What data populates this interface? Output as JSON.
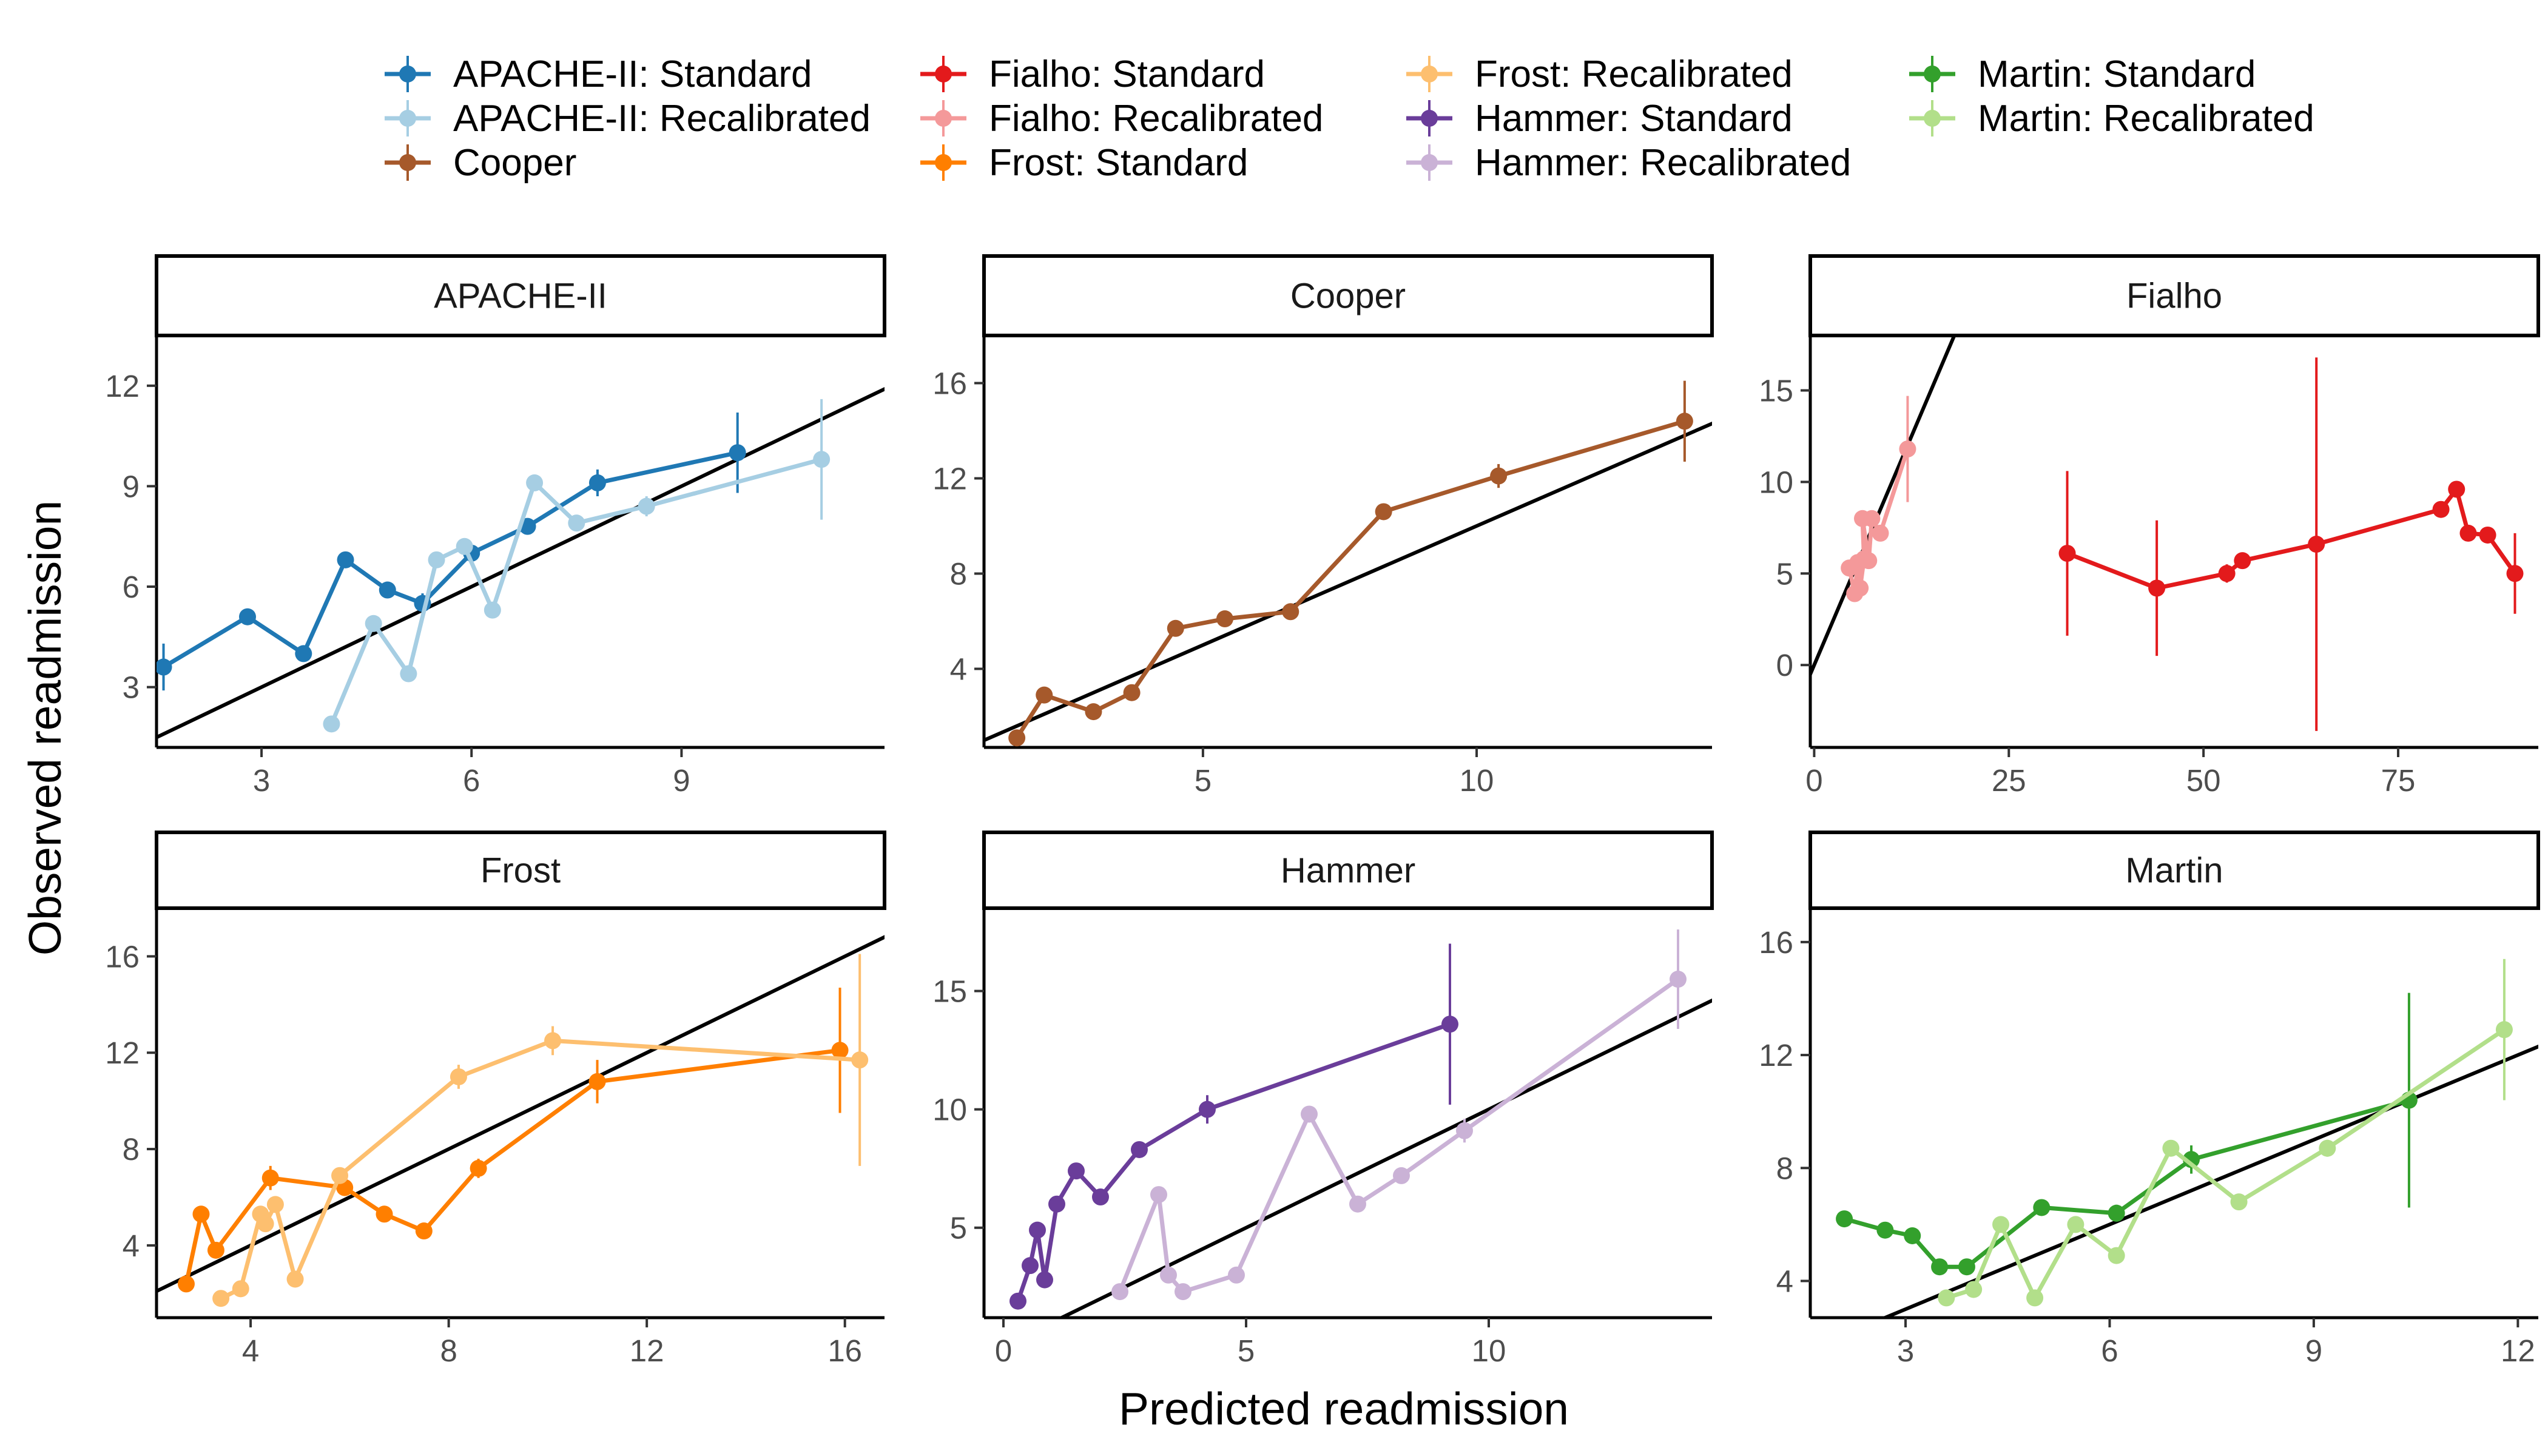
{
  "chart_data": {
    "type": "line",
    "xlabel": "Predicted readmission",
    "ylabel": "Observed readmission",
    "legend_position": "top",
    "reference_line": "y = x",
    "legend": [
      {
        "label": "APACHE-II: Standard",
        "color": "#1F78B4"
      },
      {
        "label": "APACHE-II: Recalibrated",
        "color": "#A6CEE3"
      },
      {
        "label": "Cooper",
        "color": "#A6592B"
      },
      {
        "label": "Fialho: Standard",
        "color": "#E31A1C"
      },
      {
        "label": "Fialho: Recalibrated",
        "color": "#F4999A"
      },
      {
        "label": "Frost: Standard",
        "color": "#FF7F00"
      },
      {
        "label": "Frost: Recalibrated",
        "color": "#FDBF6F"
      },
      {
        "label": "Hammer: Standard",
        "color": "#6A3D9A"
      },
      {
        "label": "Hammer: Recalibrated",
        "color": "#CAB2D6"
      },
      {
        "label": "Martin: Standard",
        "color": "#33A02C"
      },
      {
        "label": "Martin: Recalibrated",
        "color": "#B2DF8A"
      }
    ],
    "panels": [
      {
        "title": "APACHE-II",
        "xlim": [
          1.5,
          11.9
        ],
        "ylim": [
          1.2,
          13.5
        ],
        "xticks": [
          3,
          6,
          9
        ],
        "yticks": [
          3,
          6,
          9,
          12
        ],
        "series": [
          {
            "name": "APACHE-II: Standard",
            "color": "#1F78B4",
            "points": [
              [
                1.6,
                3.6,
                0.7
              ],
              [
                2.8,
                5.1,
                0.25
              ],
              [
                3.6,
                4.0,
                0.2
              ],
              [
                4.2,
                6.8,
                0.2
              ],
              [
                4.8,
                5.9,
                0.2
              ],
              [
                5.3,
                5.5,
                0.3
              ],
              [
                6.0,
                7.0,
                0.2
              ],
              [
                6.8,
                7.8,
                0.2
              ],
              [
                7.8,
                9.1,
                0.4
              ],
              [
                9.8,
                10.0,
                1.2
              ]
            ]
          },
          {
            "name": "APACHE-II: Recalibrated",
            "color": "#A6CEE3",
            "points": [
              [
                4.0,
                1.9,
                0.2
              ],
              [
                4.6,
                4.9,
                0.2
              ],
              [
                5.1,
                3.4,
                0.2
              ],
              [
                5.5,
                6.8,
                0.2
              ],
              [
                5.9,
                7.2,
                0.2
              ],
              [
                6.3,
                5.3,
                0.2
              ],
              [
                6.9,
                9.1,
                0.2
              ],
              [
                7.5,
                7.9,
                0.2
              ],
              [
                8.5,
                8.4,
                0.3
              ],
              [
                11.0,
                9.8,
                1.8
              ]
            ]
          }
        ]
      },
      {
        "title": "Cooper",
        "xlim": [
          1.0,
          14.3
        ],
        "ylim": [
          0.7,
          18.0
        ],
        "xticks": [
          5,
          10
        ],
        "yticks": [
          4,
          8,
          12,
          16
        ],
        "series": [
          {
            "name": "Cooper",
            "color": "#A6592B",
            "points": [
              [
                1.6,
                1.1,
                0.2
              ],
              [
                2.1,
                2.9,
                0.3
              ],
              [
                3.0,
                2.2,
                0.3
              ],
              [
                3.7,
                3.0,
                0.3
              ],
              [
                4.5,
                5.7,
                0.3
              ],
              [
                5.4,
                6.1,
                0.3
              ],
              [
                6.6,
                6.4,
                0.2
              ],
              [
                8.3,
                10.6,
                0.3
              ],
              [
                10.4,
                12.1,
                0.5
              ],
              [
                13.8,
                14.4,
                1.7
              ]
            ]
          }
        ]
      },
      {
        "title": "Fialho",
        "xlim": [
          -0.5,
          93.0
        ],
        "ylim": [
          -4.5,
          18.0
        ],
        "xticks": [
          0,
          25,
          50,
          75
        ],
        "yticks": [
          0,
          5,
          10,
          15
        ],
        "series": [
          {
            "name": "Fialho: Standard",
            "color": "#E31A1C",
            "points": [
              [
                32.5,
                6.1,
                4.5
              ],
              [
                44.0,
                4.2,
                3.7
              ],
              [
                53.0,
                5.0,
                0.5
              ],
              [
                55.0,
                5.7,
                0.3
              ],
              [
                64.5,
                6.6,
                10.2
              ],
              [
                80.5,
                8.5,
                0.4
              ],
              [
                82.5,
                9.6,
                0.3
              ],
              [
                84.0,
                7.2,
                0.3
              ],
              [
                86.5,
                7.1,
                0.4
              ],
              [
                90.0,
                5.0,
                2.2
              ]
            ]
          },
          {
            "name": "Fialho: Recalibrated",
            "color": "#F4999A",
            "points": [
              [
                4.5,
                5.3,
                0.2
              ],
              [
                5.2,
                3.9,
                0.2
              ],
              [
                5.6,
                5.6,
                0.2
              ],
              [
                5.9,
                4.2,
                0.2
              ],
              [
                6.4,
                5.8,
                0.2
              ],
              [
                6.2,
                8.0,
                0.2
              ],
              [
                7.0,
                5.7,
                0.3
              ],
              [
                7.4,
                8.0,
                0.3
              ],
              [
                8.5,
                7.2,
                0.3
              ],
              [
                12.0,
                11.8,
                2.9
              ]
            ]
          }
        ]
      },
      {
        "title": "Frost",
        "xlim": [
          2.1,
          16.8
        ],
        "ylim": [
          1.0,
          18.0
        ],
        "xticks": [
          4,
          8,
          12,
          16
        ],
        "yticks": [
          4,
          8,
          12,
          16
        ],
        "series": [
          {
            "name": "Frost: Standard",
            "color": "#FF7F00",
            "points": [
              [
                2.7,
                2.4,
                0.3
              ],
              [
                3.0,
                5.3,
                0.3
              ],
              [
                3.3,
                3.8,
                0.3
              ],
              [
                4.4,
                6.8,
                0.5
              ],
              [
                5.9,
                6.4,
                0.3
              ],
              [
                6.7,
                5.3,
                0.3
              ],
              [
                7.5,
                4.6,
                0.3
              ],
              [
                8.6,
                7.2,
                0.4
              ],
              [
                11.0,
                10.8,
                0.9
              ],
              [
                15.9,
                12.1,
                2.6
              ]
            ]
          },
          {
            "name": "Frost: Recalibrated",
            "color": "#FDBF6F",
            "points": [
              [
                3.4,
                1.8,
                0.2
              ],
              [
                3.8,
                2.2,
                0.2
              ],
              [
                4.2,
                5.3,
                0.3
              ],
              [
                4.3,
                4.9,
                0.3
              ],
              [
                4.5,
                5.7,
                0.3
              ],
              [
                4.9,
                2.6,
                0.2
              ],
              [
                5.8,
                6.9,
                0.3
              ],
              [
                8.2,
                11.0,
                0.5
              ],
              [
                10.1,
                12.5,
                0.6
              ],
              [
                16.3,
                11.7,
                4.4
              ]
            ]
          }
        ]
      },
      {
        "title": "Hammer",
        "xlim": [
          -0.4,
          14.6
        ],
        "ylim": [
          1.2,
          18.5
        ],
        "xticks": [
          0,
          5,
          10
        ],
        "yticks": [
          5,
          10,
          15
        ],
        "series": [
          {
            "name": "Hammer: Standard",
            "color": "#6A3D9A",
            "points": [
              [
                0.3,
                1.9,
                0.2
              ],
              [
                0.55,
                3.4,
                0.3
              ],
              [
                0.7,
                4.9,
                0.3
              ],
              [
                0.85,
                2.8,
                0.3
              ],
              [
                1.1,
                6.0,
                0.3
              ],
              [
                1.5,
                7.4,
                0.3
              ],
              [
                2.0,
                6.3,
                0.3
              ],
              [
                2.8,
                8.3,
                0.3
              ],
              [
                4.2,
                10.0,
                0.6
              ],
              [
                9.2,
                13.6,
                3.4
              ]
            ]
          },
          {
            "name": "Hammer: Recalibrated",
            "color": "#CAB2D6",
            "points": [
              [
                2.4,
                2.3,
                0.3
              ],
              [
                3.2,
                6.4,
                0.3
              ],
              [
                3.4,
                3.0,
                0.3
              ],
              [
                3.7,
                2.3,
                0.3
              ],
              [
                4.8,
                3.0,
                0.3
              ],
              [
                6.3,
                9.8,
                0.3
              ],
              [
                7.3,
                6.0,
                0.3
              ],
              [
                8.2,
                7.2,
                0.3
              ],
              [
                9.5,
                9.1,
                0.5
              ],
              [
                13.9,
                15.5,
                2.1
              ]
            ]
          }
        ]
      },
      {
        "title": "Martin",
        "xlim": [
          1.6,
          12.3
        ],
        "ylim": [
          2.7,
          17.2
        ],
        "xticks": [
          3,
          6,
          9,
          12
        ],
        "yticks": [
          4,
          8,
          12,
          16
        ],
        "series": [
          {
            "name": "Martin: Standard",
            "color": "#33A02C",
            "points": [
              [
                2.1,
                6.2,
                0.2
              ],
              [
                2.7,
                5.8,
                0.2
              ],
              [
                3.1,
                5.6,
                0.2
              ],
              [
                3.5,
                4.5,
                0.2
              ],
              [
                3.9,
                4.5,
                0.2
              ],
              [
                5.0,
                6.6,
                0.2
              ],
              [
                6.1,
                6.4,
                0.3
              ],
              [
                7.2,
                8.3,
                0.5
              ],
              [
                10.4,
                10.4,
                3.8
              ]
            ]
          },
          {
            "name": "Martin: Recalibrated",
            "color": "#B2DF8A",
            "points": [
              [
                3.6,
                3.4,
                0.2
              ],
              [
                4.0,
                3.7,
                0.2
              ],
              [
                4.4,
                6.0,
                0.2
              ],
              [
                4.9,
                3.4,
                0.2
              ],
              [
                5.5,
                6.0,
                0.2
              ],
              [
                6.1,
                4.9,
                0.2
              ],
              [
                6.9,
                8.7,
                0.2
              ],
              [
                7.9,
                6.8,
                0.2
              ],
              [
                9.2,
                8.7,
                0.3
              ],
              [
                11.8,
                12.9,
                2.5
              ]
            ]
          }
        ]
      }
    ]
  }
}
